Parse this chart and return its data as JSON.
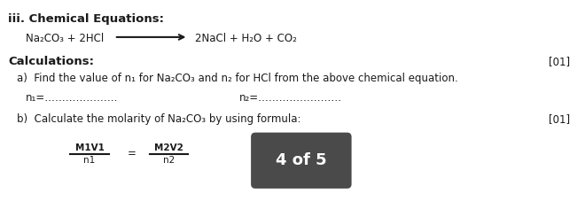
{
  "bg_color": "#ffffff",
  "title_text": "iii. Chemical Equations:",
  "equation_left": "Na₂CO₃ + 2HCl",
  "equation_right": "2NaCl + H₂O + CO₂",
  "calcs_label": "Calculations:",
  "marks_a": "[01]",
  "marks_b": "[01]",
  "part_a_text": "a)  Find the value of n₁ for Na₂CO₃ and n₂ for HCl from the above chemical equation.",
  "n1_label": "n₁=…………………",
  "n2_label": "n₂=……………………",
  "part_b_text": "b)  Calculate the molarity of Na₂CO₃ by using formula:",
  "formula_num1": "M1V1",
  "formula_den1": "n1",
  "formula_eq": "=",
  "formula_num2": "M2V2",
  "formula_den2": "n2",
  "badge_text": "4 of 5",
  "badge_color": "#4a4a4a",
  "badge_text_color": "#ffffff",
  "text_color": "#1a1a1a",
  "font_size_title": 9.5,
  "font_size_body": 8.5,
  "font_size_small": 7.5
}
